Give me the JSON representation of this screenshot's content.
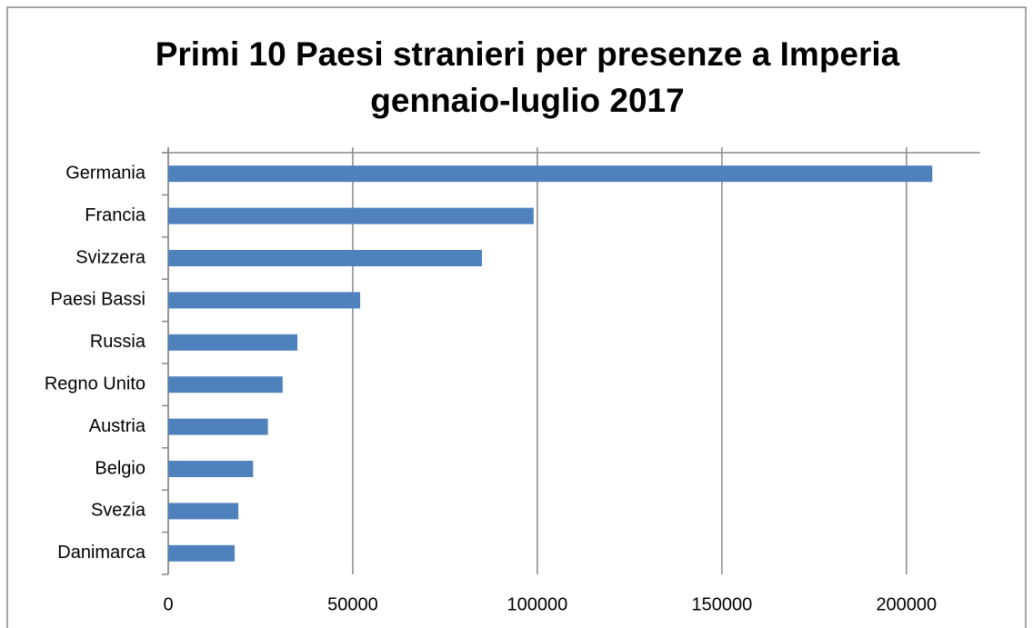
{
  "chart_data": {
    "type": "bar",
    "orientation": "horizontal",
    "title": "Primi 10 Paesi stranieri per presenze a Imperia",
    "subtitle": "gennaio-luglio 2017",
    "categories": [
      "Germania",
      "Francia",
      "Svizzera",
      "Paesi Bassi",
      "Russia",
      "Regno Unito",
      "Austria",
      "Belgio",
      "Svezia",
      "Danimarca"
    ],
    "values": [
      207000,
      99000,
      85000,
      52000,
      35000,
      31000,
      27000,
      23000,
      19000,
      18000
    ],
    "color": "#4f81bd",
    "xlim": [
      0,
      220000
    ],
    "xticks": [
      0,
      50000,
      100000,
      150000,
      200000
    ],
    "grid": true
  }
}
